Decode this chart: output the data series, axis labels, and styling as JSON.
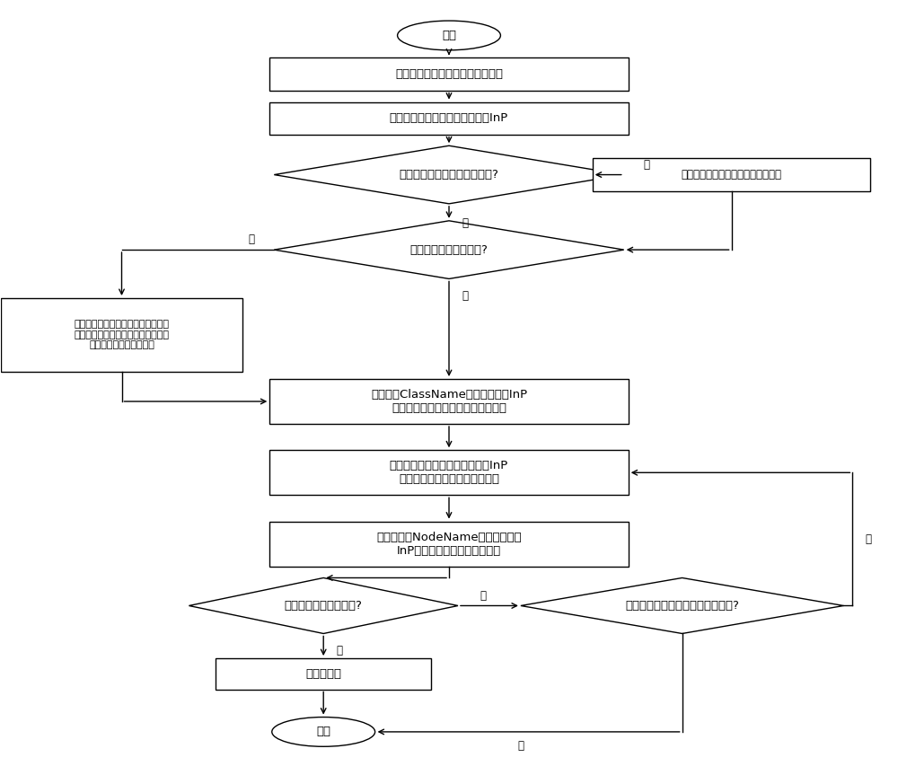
{
  "bg_color": "#ffffff",
  "border_color": "#000000",
  "fill_color": "#ffffff",
  "fill_color_light": "#e8e8f0",
  "arrow_color": "#000000",
  "text_color": "#000000",
  "font_size": 9.5,
  "small_font_size": 8.5,
  "label_font_size": 8.5,
  "start_label": "开始",
  "end_label": "结束",
  "box1_label": "将请求数据包发送到名称解析模块",
  "box2_label": "将请求兴趣包解析为请求兴趣包InP",
  "dia1_label": "簇内节点是否发生登入或登出?",
  "box_right_label": "对簇内节点信息索引表进行更新处理",
  "dia2_label": "簇头节点是否发生异常?",
  "box_left_label": "获取簇内信息索引表信息，对簇头节\n点信息库进行更新处理；对簇内节点\n信息索引表进行更新处理",
  "box3_label": "将类簇名ClassName与请求兴趣包InP\n中类名进行匹配，并形成类簇相似表",
  "box4_label": "依据类簇相似表，将请求兴趣包InP\n发送到相关的簇内节点匹配模块",
  "box5_label": "将节点名称NodeName与请求兴趣包\nInP中请求兴趣名进行前缀匹配",
  "dia3_label": "是否找到所需要的数据?",
  "dia4_label": "查询类簇相似表中是否存在剩余项?",
  "box6_label": "返回数据包",
  "yes_label": "是",
  "no_label": "否"
}
